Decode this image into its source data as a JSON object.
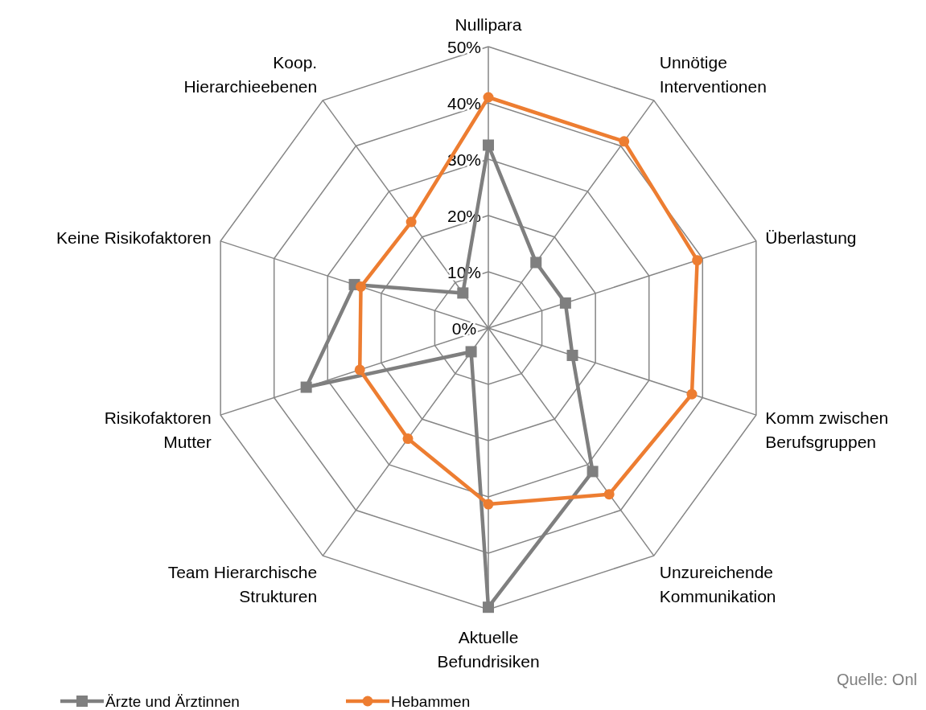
{
  "chart_data": {
    "type": "radar",
    "categories": [
      "Nullipara",
      "Unnötige Interventionen",
      "Überlastung",
      "Komm zwischen Berufsgruppen",
      "Unzureichende Kommunikation",
      "Aktuelle Befundrisiken",
      "Team Hierarchische Strukturen",
      "Risikofaktoren Mutter",
      "Keine Risikofaktoren",
      "Koop. Hierarchieebenen"
    ],
    "series": [
      {
        "name": "Ärzte und Ärztinnen",
        "color": "#7f7f7f",
        "marker": "square",
        "values": [
          32.5,
          14.4,
          14.4,
          15.7,
          31.5,
          49.6,
          5.2,
          34,
          25,
          7.7
        ]
      },
      {
        "name": "Hebammen",
        "color": "#ed7d31",
        "marker": "circle",
        "values": [
          41,
          41,
          39,
          38,
          36.5,
          31.3,
          24.3,
          24,
          23.8,
          23.3
        ]
      }
    ],
    "ylim": [
      0,
      50
    ],
    "yticks": [
      {
        "value": 0,
        "label": "0%"
      },
      {
        "value": 10,
        "label": "10%"
      },
      {
        "value": 20,
        "label": "20%"
      },
      {
        "value": 30,
        "label": "30%"
      },
      {
        "value": 40,
        "label": "40%"
      },
      {
        "value": 50,
        "label": "50%"
      }
    ],
    "grid": true,
    "legend": "bottom left",
    "line_style": "solid",
    "annotations": [
      "Quelle: Onl"
    ]
  }
}
